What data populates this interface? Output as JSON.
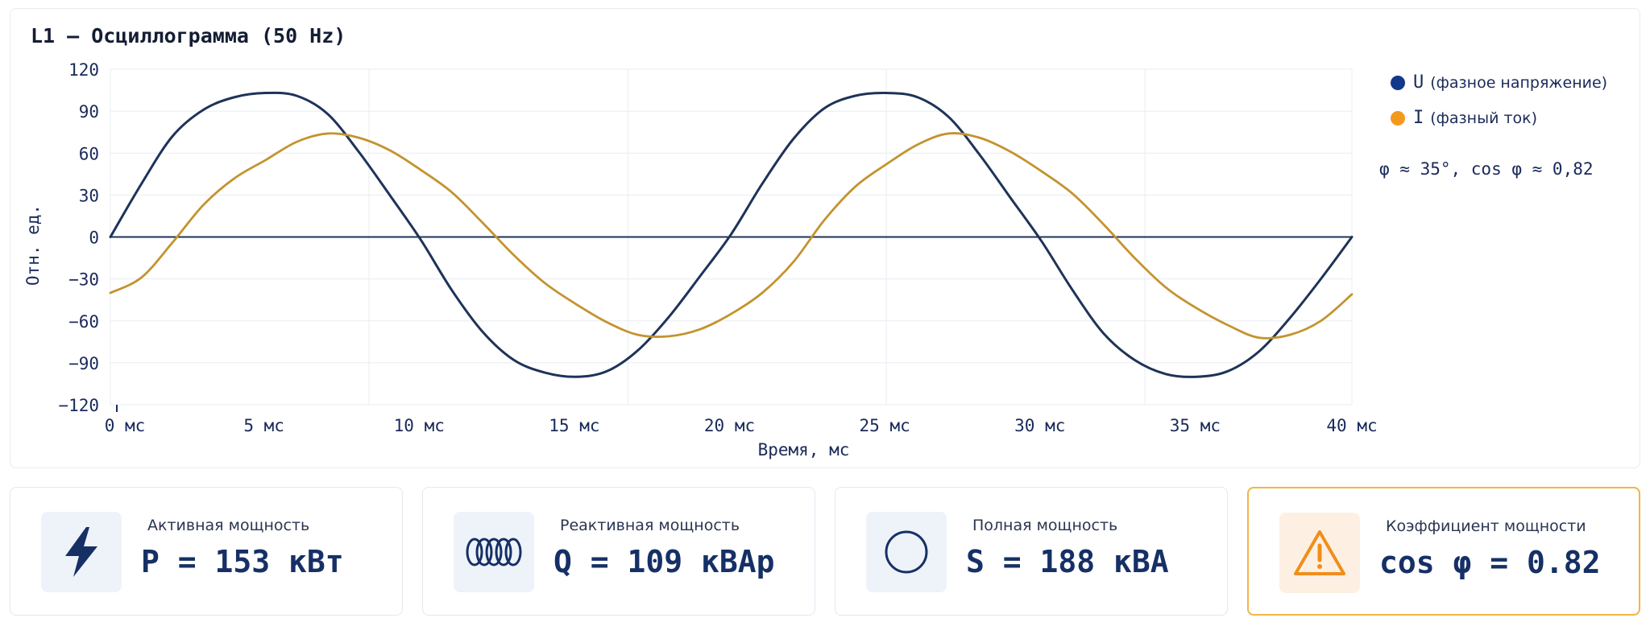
{
  "chart_data": {
    "type": "line",
    "title": "L1 — Осциллограмма (50 Hz)",
    "xlabel": "Время, мс",
    "ylabel": "Отн. ед.",
    "xlim": [
      0,
      40
    ],
    "ylim": [
      -120,
      120
    ],
    "x_ticks": [
      0,
      5,
      10,
      15,
      20,
      25,
      30,
      35,
      40
    ],
    "x_tick_labels": [
      "0 мс",
      "5 мс",
      "10 мс",
      "15 мс",
      "20 мс",
      "25 мс",
      "30 мс",
      "35 мс",
      "40 мс"
    ],
    "y_ticks": [
      120,
      90,
      60,
      30,
      0,
      -30,
      -60,
      -90,
      -120
    ],
    "y_tick_labels": [
      "120",
      "90",
      "60",
      "30",
      "0",
      "−30",
      "−60",
      "−90",
      "−120"
    ],
    "grid": true,
    "legend_position": "right",
    "x": [
      0,
      1,
      2,
      3,
      4,
      5,
      6,
      7,
      8,
      9,
      10,
      11,
      12,
      13,
      14,
      15,
      16,
      17,
      18,
      19,
      20,
      21,
      22,
      23,
      24,
      25,
      26,
      27,
      28,
      29,
      30,
      31,
      32,
      33,
      34,
      35,
      36,
      37,
      38,
      39,
      40
    ],
    "series": [
      {
        "name": "U",
        "description": "(фазное напряжение)",
        "color": "#1e3358",
        "values": [
          0,
          38,
          72,
          91,
          100,
          103,
          101,
          88,
          61,
          30,
          -2,
          -38,
          -68,
          -88,
          -97,
          -100,
          -96,
          -81,
          -57,
          -28,
          2,
          38,
          70,
          92,
          101,
          103,
          100,
          86,
          59,
          28,
          -3,
          -38,
          -69,
          -88,
          -98,
          -100,
          -96,
          -82,
          -58,
          -30,
          0
        ]
      },
      {
        "name": "I",
        "description": "(фазный ток)",
        "color": "#c4932e",
        "values": [
          -40,
          -29,
          -4,
          23,
          42,
          55,
          68,
          74,
          71,
          62,
          48,
          32,
          10,
          -13,
          -33,
          -48,
          -61,
          -70,
          -71,
          -66,
          -55,
          -40,
          -18,
          12,
          36,
          52,
          66,
          74,
          71,
          61,
          47,
          31,
          9,
          -15,
          -36,
          -51,
          -63,
          -72,
          -70,
          -60,
          -41
        ]
      }
    ],
    "annotation": "φ ≈ 35°, cos φ ≈ 0,82"
  },
  "legend_dot_colors": {
    "U": "#13388a",
    "I": "#f39a1e"
  },
  "cards": [
    {
      "label": "Активная мощность",
      "value": "P = 153 кВт",
      "icon": "lightning-icon",
      "accent": "#163066"
    },
    {
      "label": "Реактивная мощность",
      "value": "Q = 109 кВАр",
      "icon": "coil-icon",
      "accent": "#163066"
    },
    {
      "label": "Полная мощность",
      "value": "S = 188 кВА",
      "icon": "circle-icon",
      "accent": "#163066"
    },
    {
      "label": "Коэффициент мощности",
      "value": "cos φ = 0.82",
      "icon": "warning-icon",
      "accent": "#ef8e1b"
    }
  ]
}
